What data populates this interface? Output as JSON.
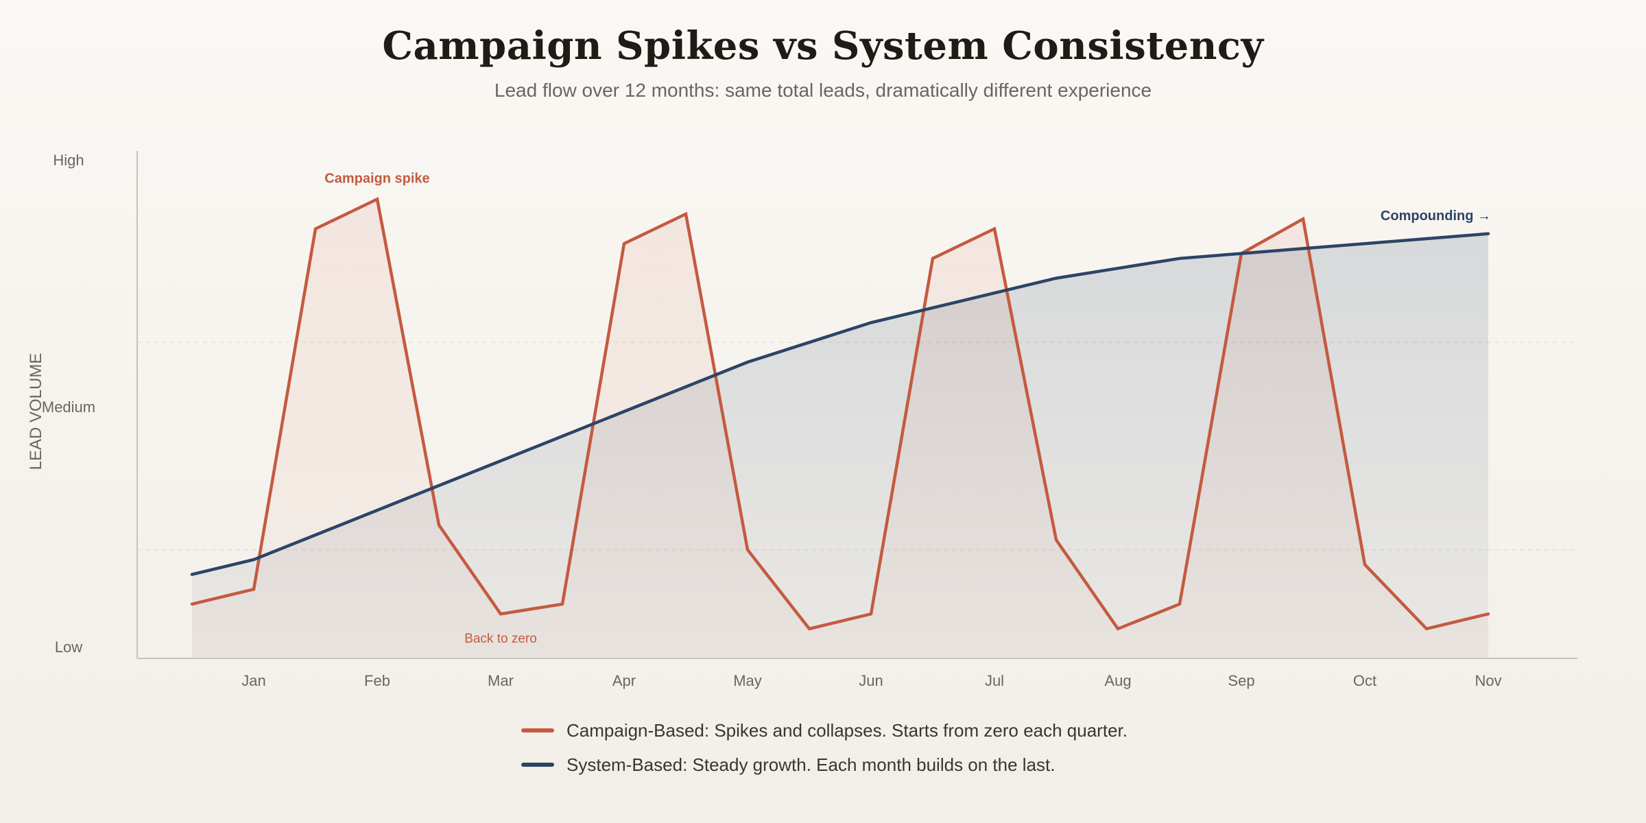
{
  "colors": {
    "campaign": "#c45a40",
    "system": "#2c4466",
    "axis": "#c8c2ba",
    "text_muted": "#6b6560"
  },
  "chart_data": {
    "type": "line",
    "title": "Campaign Spikes vs System Consistency",
    "subtitle": "Lead flow over 12 months: same total leads, dramatically different experience",
    "ylabel": "LEAD VOLUME",
    "y_ticks": [
      "High",
      "Medium",
      "Low"
    ],
    "ylim": [
      0,
      100
    ],
    "categories": [
      "Jan",
      "Feb",
      "Mar",
      "Apr",
      "May",
      "Jun",
      "Jul",
      "Aug",
      "Sep",
      "Oct",
      "Nov"
    ],
    "grid": "horizontal dashed",
    "series": [
      {
        "name": "Campaign-Based",
        "legend": "Campaign-Based: Spikes and collapses. Starts from zero each quarter.",
        "x": [
          -0.5,
          0,
          0.5,
          1,
          1.5,
          2,
          2.5,
          3,
          3.5,
          4,
          4.5,
          5,
          5.5,
          6,
          6.5,
          7,
          7.5,
          8,
          8.5,
          9,
          9.5,
          10
        ],
        "values": [
          11,
          14,
          87,
          93,
          27,
          9,
          11,
          84,
          90,
          22,
          6,
          9,
          81,
          87,
          24,
          6,
          11,
          82,
          89,
          19,
          6,
          9
        ]
      },
      {
        "name": "System-Based",
        "legend": "System-Based: Steady growth. Each month builds on the last.",
        "x": [
          -0.5,
          0,
          0.5,
          1,
          1.5,
          2,
          2.5,
          3,
          3.5,
          4,
          4.5,
          5,
          5.5,
          6,
          6.5,
          7,
          7.5,
          8,
          8.5,
          9,
          9.5,
          10
        ],
        "values": [
          17,
          20,
          25,
          30,
          35,
          40,
          45,
          50,
          55,
          60,
          64,
          68,
          71,
          74,
          77,
          79,
          81,
          82,
          83,
          84,
          85,
          86
        ]
      }
    ],
    "annotations": [
      {
        "text": "Campaign spike",
        "series": "Campaign-Based",
        "x": 1,
        "y": 93,
        "position": "above"
      },
      {
        "text": "Back to zero",
        "series": "Campaign-Based",
        "x": 2,
        "y": 9,
        "position": "below"
      },
      {
        "text": "Compounding →",
        "series": "System-Based",
        "x": 10,
        "y": 86,
        "position": "above"
      }
    ],
    "legend_position": "bottom-center"
  }
}
